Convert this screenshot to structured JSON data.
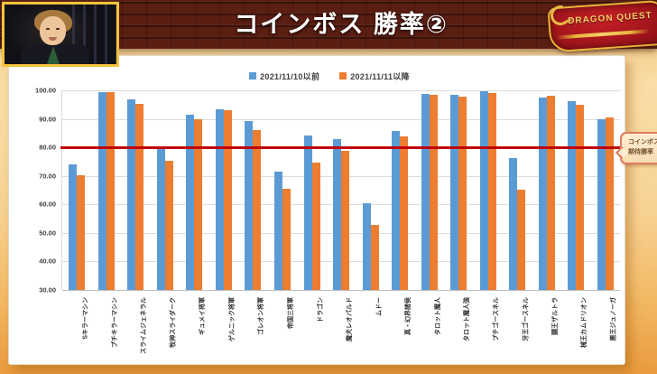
{
  "header": {
    "title": "コインボス 勝率②"
  },
  "logo": {
    "line1": "DRAGON QUEST"
  },
  "callout": {
    "line1": "コインボス",
    "line2": "期待勝率"
  },
  "colors": {
    "series_before": "#5b9bd5",
    "series_after": "#ed7d31",
    "reference_line": "#c00000"
  },
  "chart_data": {
    "type": "bar",
    "title": "コインボス 勝率②",
    "categories": [
      "Sキラーマシン",
      "プチキラーマシン",
      "スライムジェネラル",
      "牧神スライダーク",
      "ギュメイ将軍",
      "ゲルニック将軍",
      "ゴレオン将軍",
      "帝国三将軍",
      "ドラゴン",
      "魔犬レオパルド",
      "ムドー",
      "真・幻界諸侯",
      "タロット魔人",
      "タロット魔人強",
      "プチゴースネル",
      "牙王ゴースネル",
      "闘王ザルトラ",
      "械王カムドリオン",
      "悪王ジュノーガ"
    ],
    "series": [
      {
        "name": "2021/11/10以前",
        "color": "#5b9bd5",
        "values": [
          74.0,
          99.5,
          96.8,
          80.2,
          91.3,
          93.4,
          89.2,
          71.5,
          84.2,
          83.0,
          60.3,
          85.6,
          98.6,
          98.3,
          99.6,
          76.3,
          97.6,
          96.1,
          89.8
        ]
      },
      {
        "name": "2021/11/11以降",
        "color": "#ed7d31",
        "values": [
          70.3,
          99.4,
          95.3,
          75.2,
          90.0,
          92.9,
          86.1,
          65.6,
          74.6,
          78.7,
          52.8,
          83.7,
          98.3,
          97.9,
          99.2,
          65.2,
          98.1,
          94.9,
          90.5
        ]
      }
    ],
    "ylim": [
      30,
      100
    ],
    "yticks": [
      "100.00",
      "90.00",
      "80.00",
      "70.00",
      "60.00",
      "50.00",
      "40.00",
      "30.00"
    ],
    "grid": true,
    "legend_position": "top",
    "reference_line": {
      "value": 80,
      "color": "#c00000",
      "label": "コインボス 期待勝率"
    }
  }
}
